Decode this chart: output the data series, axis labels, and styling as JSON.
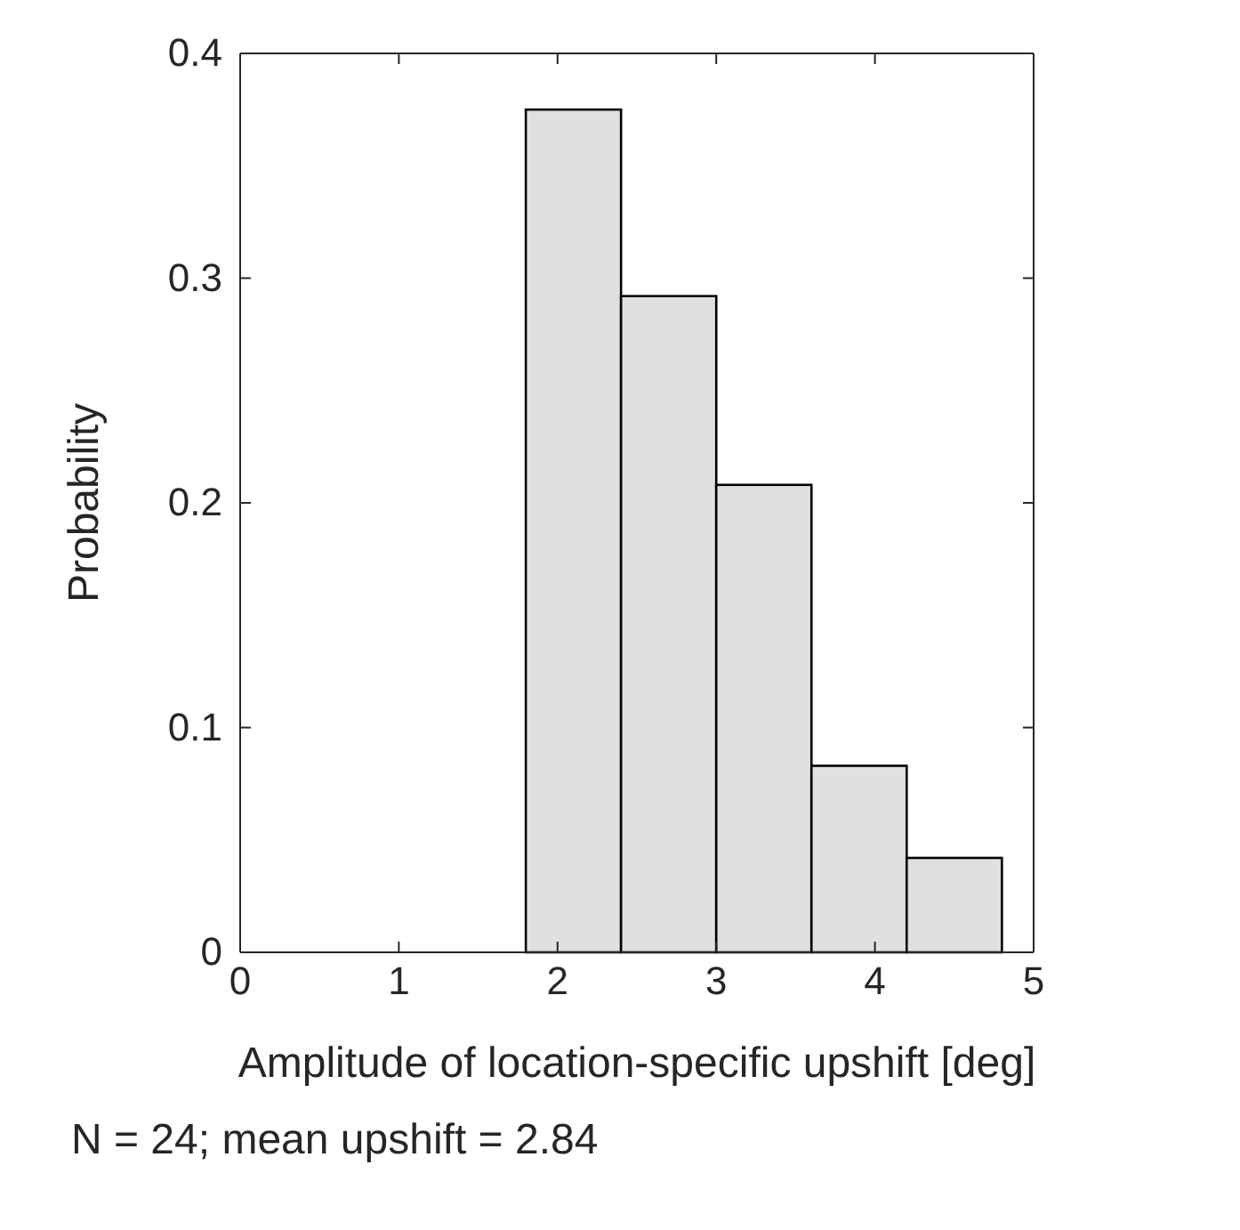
{
  "chart_data": {
    "type": "histogram",
    "xlabel": "Amplitude of location-specific upshift [deg]",
    "ylabel": "Probability",
    "bins": [
      0,
      0.6,
      1.2,
      1.8,
      2.4,
      3.0,
      3.6,
      4.2,
      4.8
    ],
    "values": [
      0,
      0,
      0,
      0.375,
      0.292,
      0.208,
      0.083,
      0.042
    ],
    "color": "#e0e0e0",
    "xlim": [
      0,
      5
    ],
    "xticks": [
      0,
      1,
      2,
      3,
      4,
      5
    ],
    "ylim": [
      0,
      0.4
    ],
    "yticks": [
      0,
      0.1,
      0.2,
      0.3,
      0.4
    ],
    "grid": false,
    "annotations": [
      "N = 24; mean upshift = 2.84"
    ]
  }
}
